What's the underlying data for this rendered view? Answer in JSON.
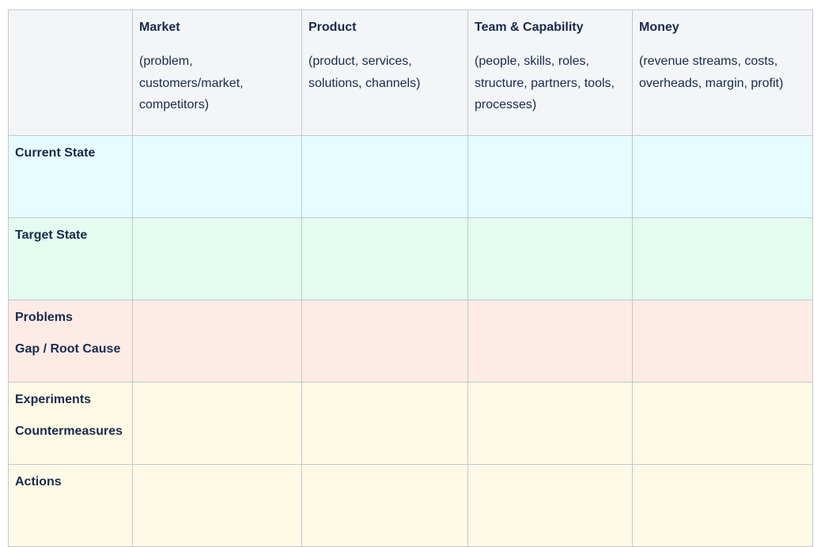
{
  "columns": [
    {
      "title": "Market",
      "description": "(problem, customers/market, competitors)"
    },
    {
      "title": "Product",
      "description": "(product, services, solutions, channels)"
    },
    {
      "title": "Team & Capability",
      "description": "(people, skills, roles, structure, partners, tools, processes)"
    },
    {
      "title": "Money",
      "description": "(revenue streams, costs, overheads, margin, profit)"
    }
  ],
  "rows": [
    {
      "labels": [
        "Current State"
      ],
      "color": "#e6fcff"
    },
    {
      "labels": [
        "Target State"
      ],
      "color": "#e3fcef"
    },
    {
      "labels": [
        "Problems",
        "Gap / Root Cause"
      ],
      "color": "#ffebe6"
    },
    {
      "labels": [
        "Experiments",
        "Countermeasures"
      ],
      "color": "#fffae6"
    },
    {
      "labels": [
        "Actions"
      ],
      "color": "#fffae6"
    }
  ]
}
